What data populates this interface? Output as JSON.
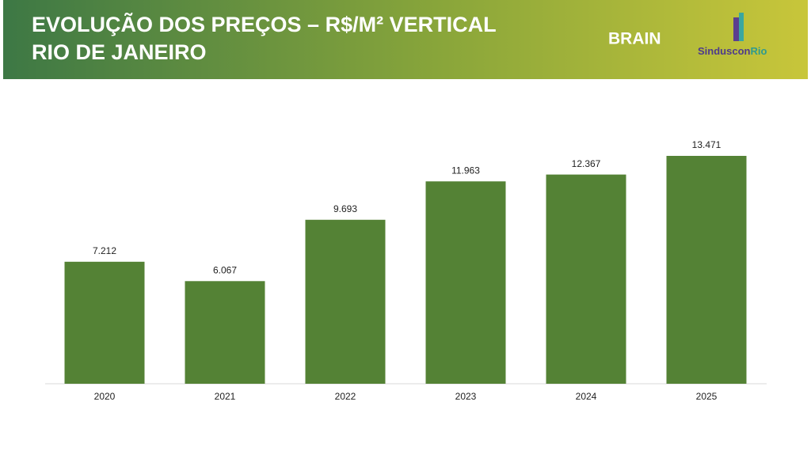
{
  "header": {
    "title_lines": [
      "EVOLUÇÃO DOS PREÇOS – R$/M² VERTICAL",
      "RIO DE JANEIRO"
    ],
    "logo_brain": "BRAIN",
    "logo_sinduscon": "Sinduscon",
    "logo_rio": "Rio"
  },
  "chart_data": {
    "type": "bar",
    "categories": [
      "2020",
      "2021",
      "2022",
      "2023",
      "2024",
      "2025"
    ],
    "values": [
      7212,
      6067,
      9693,
      11963,
      12367,
      13471
    ],
    "value_labels": [
      "7.212",
      "6.067",
      "9.693",
      "11.963",
      "12.367",
      "13.471"
    ],
    "color": "#548235"
  }
}
